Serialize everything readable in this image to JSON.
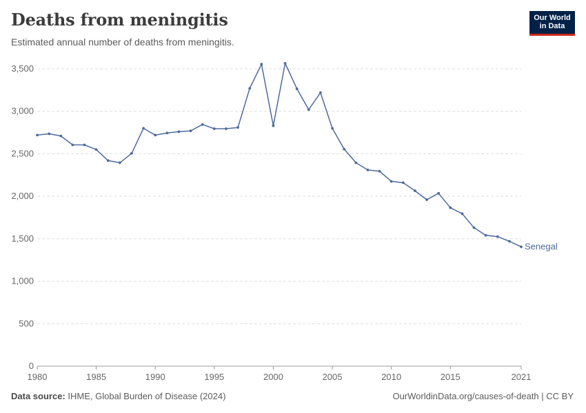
{
  "header": {
    "title": "Deaths from meningitis",
    "subtitle": "Estimated annual number of deaths from meningitis."
  },
  "logo": {
    "line1": "Our World",
    "line2": "in Data",
    "bg_color": "#002147",
    "accent_color": "#ce261e"
  },
  "footer": {
    "source_label": "Data source:",
    "source_text": "IHME, Global Burden of Disease (2024)",
    "url_text": "OurWorldinData.org/causes-of-death | CC BY"
  },
  "chart_data": {
    "type": "line",
    "title": "Deaths from meningitis",
    "xlim": [
      1980,
      2021
    ],
    "ylim": [
      0,
      3500
    ],
    "grid": true,
    "x_ticks": [
      1980,
      1985,
      1990,
      1995,
      2000,
      2005,
      2010,
      2015,
      2021
    ],
    "y_ticks": [
      0,
      500,
      1000,
      1500,
      2000,
      2500,
      3000,
      3500
    ],
    "y_tick_labels": [
      "0",
      "500",
      "1,000",
      "1,500",
      "2,000",
      "2,500",
      "3,000",
      "3,500"
    ],
    "series": [
      {
        "name": "Senegal",
        "color": "#4c6a9c",
        "x": [
          1980,
          1981,
          1982,
          1983,
          1984,
          1985,
          1986,
          1987,
          1988,
          1989,
          1990,
          1991,
          1992,
          1993,
          1994,
          1995,
          1996,
          1997,
          1998,
          1999,
          2000,
          2001,
          2002,
          2003,
          2004,
          2005,
          2006,
          2007,
          2008,
          2009,
          2010,
          2011,
          2012,
          2013,
          2014,
          2015,
          2016,
          2017,
          2018,
          2019,
          2020,
          2021
        ],
        "values": [
          2720,
          2735,
          2710,
          2605,
          2605,
          2550,
          2420,
          2395,
          2505,
          2800,
          2720,
          2745,
          2760,
          2770,
          2845,
          2795,
          2795,
          2810,
          3270,
          3555,
          2830,
          3565,
          3265,
          3020,
          3220,
          2800,
          2555,
          2395,
          2310,
          2295,
          2175,
          2160,
          2065,
          1960,
          2035,
          1865,
          1795,
          1630,
          1540,
          1525,
          1470,
          1405
        ]
      }
    ]
  }
}
